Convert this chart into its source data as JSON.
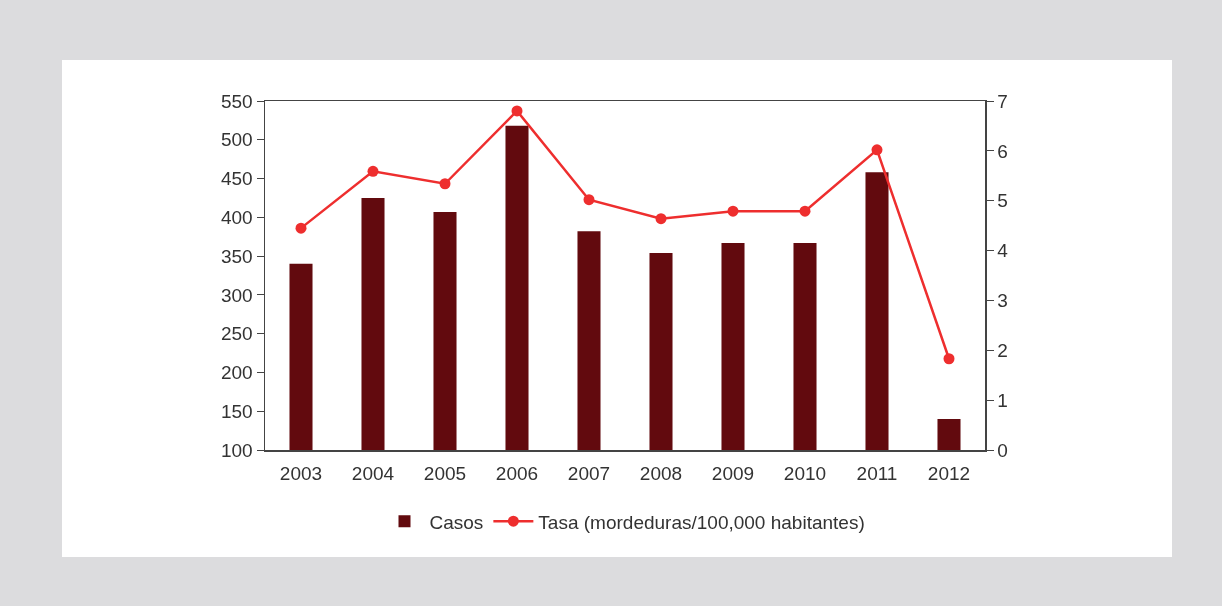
{
  "chart_data": {
    "type": "bar",
    "categories": [
      "2003",
      "2004",
      "2005",
      "2006",
      "2007",
      "2008",
      "2009",
      "2010",
      "2011",
      "2012"
    ],
    "series": [
      {
        "name": "Casos",
        "color": "#620a0e",
        "values": [
          340,
          425,
          407,
          518,
          382,
          354,
          367,
          367,
          458,
          140
        ]
      },
      {
        "name": "Tasa (mordeduras/100,000 habitantes)",
        "type": "line",
        "axis": "y2",
        "color": "#ee2e2e",
        "values": [
          4.45,
          5.59,
          5.34,
          6.8,
          5.02,
          4.64,
          4.79,
          4.79,
          6.02,
          1.83
        ]
      }
    ],
    "ylim": [
      100,
      550
    ],
    "yticks": [
      100,
      150,
      200,
      250,
      300,
      350,
      400,
      450,
      500,
      550
    ],
    "y2lim": [
      0,
      7
    ],
    "y2ticks": [
      0,
      1,
      2,
      3,
      4,
      5,
      6,
      7
    ],
    "grid": false,
    "legend": "bottom",
    "marker": "circle",
    "line_style": "solid"
  }
}
